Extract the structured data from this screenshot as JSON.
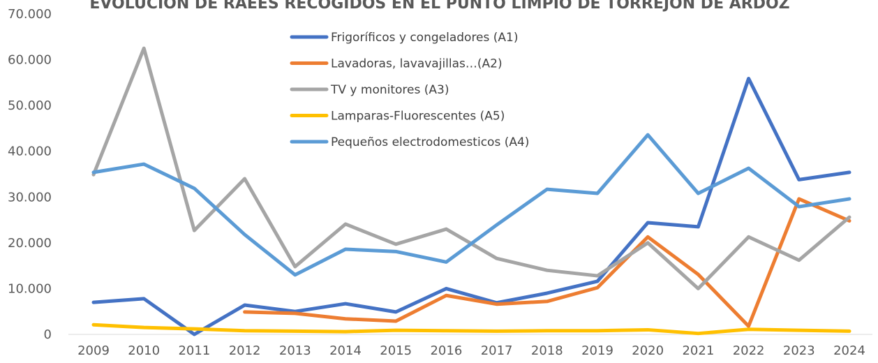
{
  "chart_data": {
    "type": "line",
    "title": "EVOLUCIÓN DE RAEES RECOGIDOS EN EL PUNTO LIMPIO DE TORREJÓN DE ARDOZ",
    "categories": [
      "2009",
      "2010",
      "2011",
      "2012",
      "2013",
      "2014",
      "2015",
      "2016",
      "2017",
      "2018",
      "2019",
      "2020",
      "2021",
      "2022",
      "2023",
      "2024"
    ],
    "series": [
      {
        "name": "Frigoríficos y congeladores (A1)",
        "color": "#4472c4",
        "values": [
          7000,
          7800,
          0,
          6400,
          5000,
          6700,
          4900,
          10000,
          6900,
          9000,
          11600,
          24400,
          23500,
          55900,
          33800,
          35400
        ]
      },
      {
        "name": "Lavadoras, lavavajillas…(A2)",
        "color": "#ed7d31",
        "values": [
          null,
          null,
          null,
          4900,
          4600,
          3400,
          2900,
          8500,
          6600,
          7200,
          10200,
          21300,
          13100,
          1800,
          29600,
          24800
        ]
      },
      {
        "name": "TV y monitores (A3)",
        "color": "#a5a5a5",
        "values": [
          34900,
          62500,
          22700,
          34000,
          14800,
          24100,
          19700,
          23000,
          16600,
          14000,
          12800,
          20000,
          10000,
          21300,
          16200,
          25600
        ]
      },
      {
        "name": "Lamparas-Fluorescentes (A5)",
        "color": "#ffc000",
        "values": [
          2100,
          1500,
          1200,
          800,
          700,
          600,
          900,
          800,
          700,
          800,
          800,
          1000,
          200,
          1100,
          900,
          700
        ]
      },
      {
        "name": "Pequeños electrodomesticos (A4)",
        "color": "#5b9bd5",
        "values": [
          35400,
          37200,
          31900,
          21800,
          13000,
          18600,
          18100,
          15800,
          23900,
          31700,
          30800,
          43600,
          30800,
          36300,
          27900,
          29600
        ]
      }
    ],
    "ylim": [
      0,
      70000
    ],
    "yticks": [
      0,
      {
        "value": 10000,
        "label": "10.000"
      },
      {
        "value": 20000,
        "label": "20.000"
      },
      {
        "value": 30000,
        "label": "30.000"
      },
      {
        "value": 40000,
        "label": "40.000"
      },
      {
        "value": 50000,
        "label": "50.000"
      },
      {
        "value": 60000,
        "label": "60.000"
      },
      {
        "value": 70000,
        "label": "70.000"
      }
    ],
    "grid": false
  }
}
